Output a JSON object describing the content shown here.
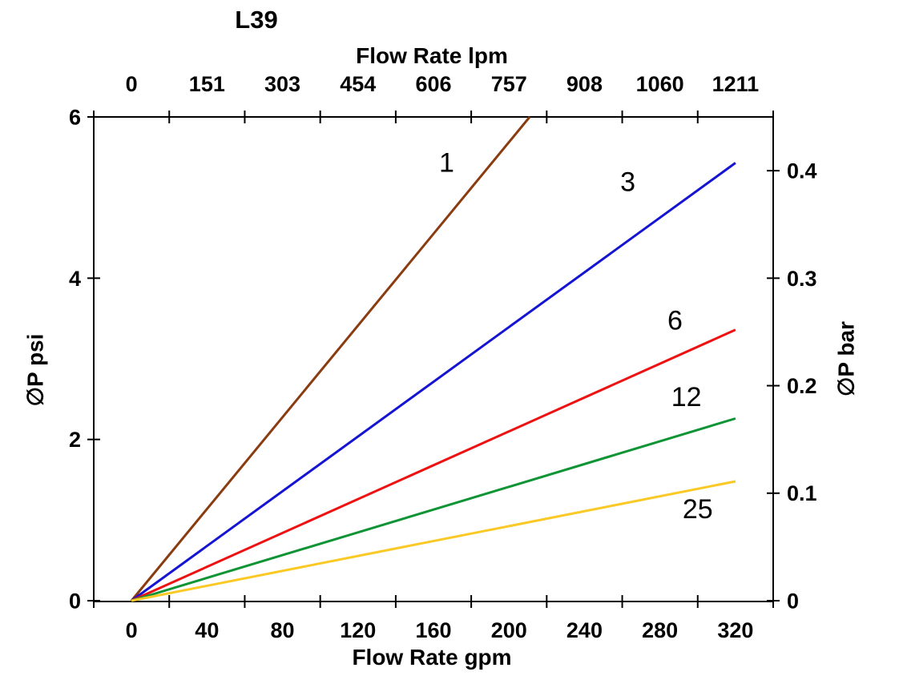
{
  "page": {
    "background": "#ffffff",
    "axis_color": "#000000",
    "text_color": "#000000"
  },
  "chart_data": {
    "type": "line",
    "title": "L39",
    "grid": false,
    "legend": "none (inline series labels)",
    "top_axis": {
      "label": "Flow Rate lpm",
      "tick_labels": [
        "0",
        "151",
        "303",
        "454",
        "606",
        "757",
        "908",
        "1060",
        "1211"
      ]
    },
    "bottom_axis": {
      "label": "Flow Rate gpm",
      "tick_labels": [
        "0",
        "40",
        "80",
        "120",
        "160",
        "200",
        "240",
        "280",
        "320"
      ],
      "tick_values": [
        0,
        40,
        80,
        120,
        160,
        200,
        240,
        280,
        320
      ]
    },
    "left_axis": {
      "label": "∅P psi",
      "ticks": [
        0,
        2,
        4,
        6
      ],
      "tick_labels": [
        "0",
        "2",
        "4",
        "6"
      ],
      "range": [
        0,
        6
      ]
    },
    "right_axis": {
      "label": "∅P bar",
      "ticks": [
        0,
        0.1,
        0.2,
        0.3,
        0.4
      ],
      "tick_labels": [
        "0",
        "0.1",
        "0.2",
        "0.3",
        "0.4"
      ],
      "range": [
        0,
        0.45
      ]
    },
    "series": [
      {
        "name": "1",
        "color": "#8b3b10",
        "points": [
          [
            0,
            0
          ],
          [
            211,
            6.0
          ]
        ],
        "label": {
          "gpm": 167,
          "psi": 5.44
        }
      },
      {
        "name": "3",
        "color": "#1414d2",
        "points": [
          [
            0,
            0
          ],
          [
            320,
            5.43
          ]
        ],
        "label": {
          "gpm": 263,
          "psi": 5.2
        }
      },
      {
        "name": "6",
        "color": "#ee1111",
        "points": [
          [
            0,
            0
          ],
          [
            320,
            3.36
          ]
        ],
        "label": {
          "gpm": 288,
          "psi": 3.48
        }
      },
      {
        "name": "12",
        "color": "#0e9434",
        "points": [
          [
            0,
            0
          ],
          [
            320,
            2.26
          ]
        ],
        "label": {
          "gpm": 294,
          "psi": 2.53
        }
      },
      {
        "name": "25",
        "color": "#fbc926",
        "points": [
          [
            0,
            0
          ],
          [
            320,
            1.48
          ]
        ],
        "label": {
          "gpm": 300,
          "psi": 1.14
        }
      }
    ]
  }
}
